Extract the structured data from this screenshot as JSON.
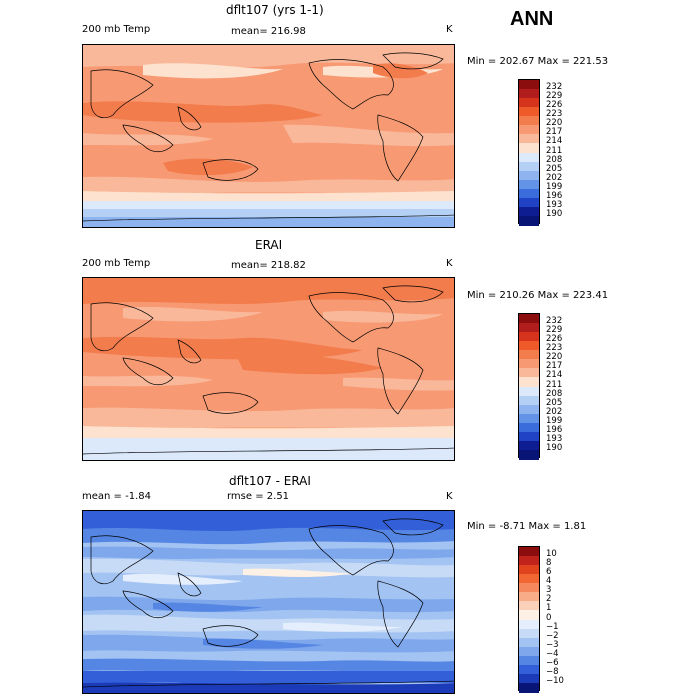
{
  "season": "ANN",
  "panels": [
    {
      "title": "dflt107 (yrs 1-1)",
      "left_label": "200 mb Temp",
      "mean_text": "mean= 216.98",
      "units": "K",
      "minmax": "Min = 202.67 Max = 221.53",
      "cbar_labels": [
        "232",
        "229",
        "226",
        "223",
        "220",
        "217",
        "214",
        "211",
        "208",
        "205",
        "202",
        "199",
        "196",
        "193",
        "190"
      ],
      "cbar_colors": [
        "#8b0d0d",
        "#b11d1d",
        "#d5331c",
        "#ef5a2a",
        "#f37c4d",
        "#f79a73",
        "#fab89b",
        "#fde3cf",
        "#dbe9fb",
        "#b5d0f5",
        "#8db4ef",
        "#6393e6",
        "#3b6cdb",
        "#1f43c4",
        "#0e1e92",
        "#081576"
      ]
    },
    {
      "title": "ERAI",
      "left_label": "200 mb Temp",
      "mean_text": "mean= 218.82",
      "units": "K",
      "minmax": "Min = 210.26 Max = 223.41",
      "cbar_labels": [
        "232",
        "229",
        "226",
        "223",
        "220",
        "217",
        "214",
        "211",
        "208",
        "205",
        "202",
        "199",
        "196",
        "193",
        "190"
      ],
      "cbar_colors": [
        "#8b0d0d",
        "#b11d1d",
        "#d5331c",
        "#ef5a2a",
        "#f37c4d",
        "#f79a73",
        "#fab89b",
        "#fde3cf",
        "#dbe9fb",
        "#b5d0f5",
        "#8db4ef",
        "#6393e6",
        "#3b6cdb",
        "#1f43c4",
        "#0e1e92",
        "#081576"
      ]
    },
    {
      "title": "dflt107 - ERAI",
      "left_label": "mean =   -1.84",
      "mean_text": "rmse =    2.51",
      "units": "K",
      "minmax": "Min =  -8.71 Max =   1.81",
      "cbar_labels": [
        "10",
        "8",
        "6",
        "4",
        "3",
        "2",
        "1",
        "0",
        "−1",
        "−2",
        "−3",
        "−4",
        "−6",
        "−8",
        "−10"
      ],
      "cbar_colors": [
        "#8b0d0d",
        "#c0231c",
        "#e2431f",
        "#f26634",
        "#f5895d",
        "#f8ac88",
        "#fbd0b8",
        "#fdf0e5",
        "#e5eefc",
        "#c7dbf7",
        "#a3c3f2",
        "#7ea7ec",
        "#5686e3",
        "#3360d8",
        "#1c3bb9",
        "#081576"
      ]
    }
  ],
  "chart_data": [
    {
      "type": "heatmap",
      "title": "dflt107 (yrs 1-1)",
      "variable": "200 mb Temp",
      "units": "K",
      "mean": 216.98,
      "min": 202.67,
      "max": 221.53,
      "contour_levels": [
        190,
        193,
        196,
        199,
        202,
        205,
        208,
        211,
        214,
        217,
        220,
        223,
        226,
        229,
        232
      ]
    },
    {
      "type": "heatmap",
      "title": "ERAI",
      "variable": "200 mb Temp",
      "units": "K",
      "mean": 218.82,
      "min": 210.26,
      "max": 223.41,
      "contour_levels": [
        190,
        193,
        196,
        199,
        202,
        205,
        208,
        211,
        214,
        217,
        220,
        223,
        226,
        229,
        232
      ]
    },
    {
      "type": "heatmap",
      "title": "dflt107 - ERAI",
      "units": "K",
      "mean": -1.84,
      "rmse": 2.51,
      "min": -8.71,
      "max": 1.81,
      "contour_levels": [
        -10,
        -8,
        -6,
        -4,
        -3,
        -2,
        -1,
        0,
        1,
        2,
        3,
        4,
        6,
        8,
        10
      ]
    }
  ]
}
